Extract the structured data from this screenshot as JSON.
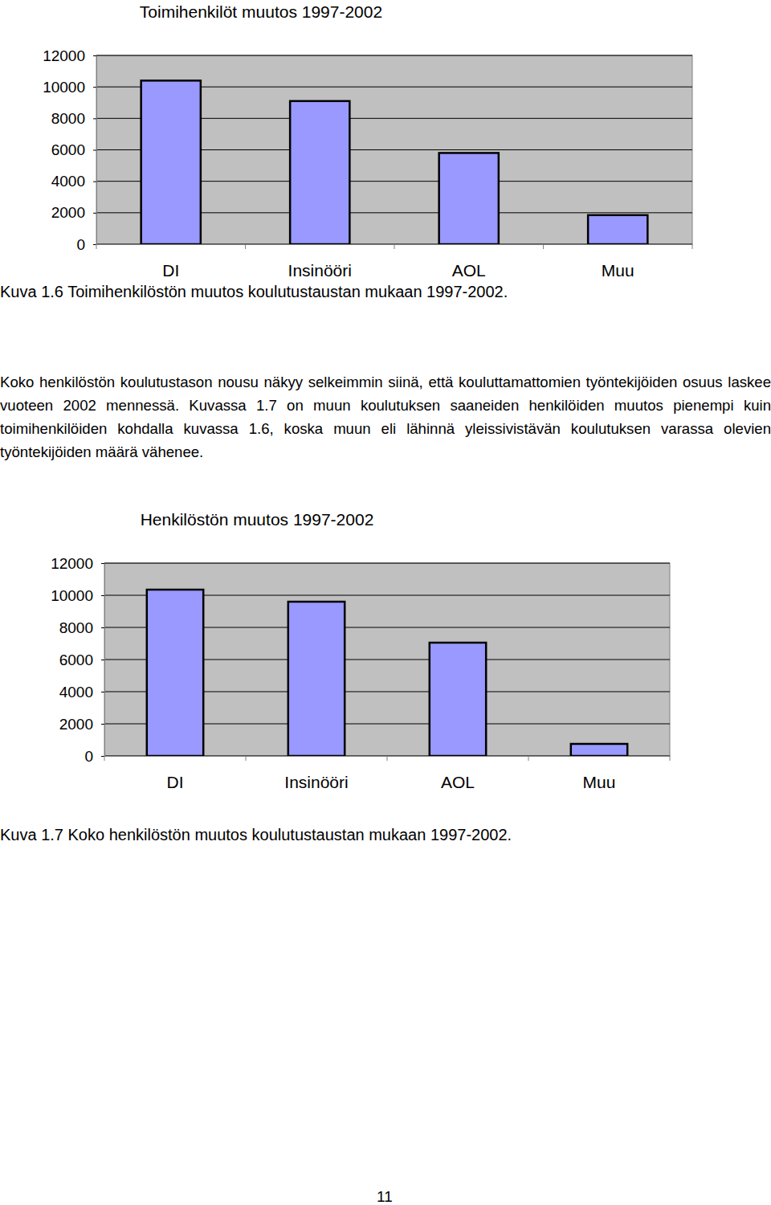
{
  "chart_data": [
    {
      "type": "bar",
      "title": "Toimihenkilöt muutos 1997-2002",
      "categories": [
        "DI",
        "Insinööri",
        "AOL",
        "Muu"
      ],
      "values": [
        10400,
        9100,
        5800,
        1850
      ],
      "color": "#9999ff",
      "ylim": [
        0,
        12000
      ],
      "yticks": [
        0,
        2000,
        4000,
        6000,
        8000,
        10000,
        12000
      ],
      "grid": true
    },
    {
      "type": "bar",
      "title": "Henkilöstön muutos 1997-2002",
      "categories": [
        "DI",
        "Insinööri",
        "AOL",
        "Muu"
      ],
      "values": [
        10350,
        9600,
        7050,
        750
      ],
      "color": "#9999ff",
      "ylim": [
        0,
        12000
      ],
      "yticks": [
        0,
        2000,
        4000,
        6000,
        8000,
        10000,
        12000
      ],
      "grid": true
    }
  ],
  "captions": [
    "Kuva 1.6  Toimihenkilöstön muutos koulutustaustan mukaan 1997-2002.",
    "Kuva 1.7  Koko henkilöstön muutos koulutustaustan mukaan 1997-2002."
  ],
  "paragraph": "Koko henkilöstön koulutustason nousu näkyy selkeimmin siinä, että kouluttamattomien työntekijöiden osuus laskee vuoteen 2002 mennessä. Kuvassa 1.7 on muun koulutuksen saaneiden henkilöiden muutos pienempi kuin toimihenkilöiden kohdalla kuvassa 1.6, koska muun eli lähinnä yleissivistävän koulutuksen varassa olevien työntekijöiden määrä vähenee.",
  "page_number": 11
}
